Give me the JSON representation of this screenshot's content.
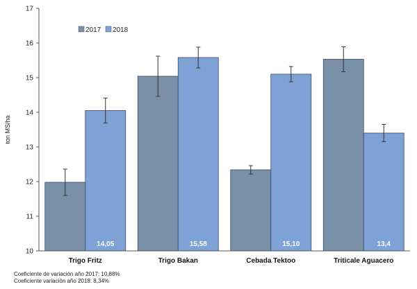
{
  "chart_data": {
    "type": "bar",
    "title": "",
    "ylabel": "ton MS/ha",
    "xlabel": "",
    "ylim": [
      10,
      17
    ],
    "yticks": [
      10,
      11,
      12,
      13,
      14,
      15,
      16,
      17
    ],
    "grid": false,
    "legend_position": "top-left",
    "categories": [
      "Trigo Fritz",
      "Trigo Bakan",
      "Cebada Tektoo",
      "Triticale Aguacero"
    ],
    "series": [
      {
        "name": "2017",
        "color": "#7a90a8",
        "values": [
          11.98,
          15.04,
          12.34,
          15.53
        ],
        "error": [
          0.38,
          0.58,
          0.12,
          0.36
        ]
      },
      {
        "name": "2018",
        "color": "#7ea1d6",
        "values": [
          14.05,
          15.58,
          15.1,
          13.4
        ],
        "error": [
          0.36,
          0.3,
          0.22,
          0.25
        ]
      }
    ],
    "data_labels": [
      "14,05",
      "15,58",
      "15,10",
      "13,4"
    ],
    "footnotes": [
      "Coeficiente de variación año 2017: 10,88%",
      "Coeficiente variación año 2018: 8,34%"
    ]
  }
}
